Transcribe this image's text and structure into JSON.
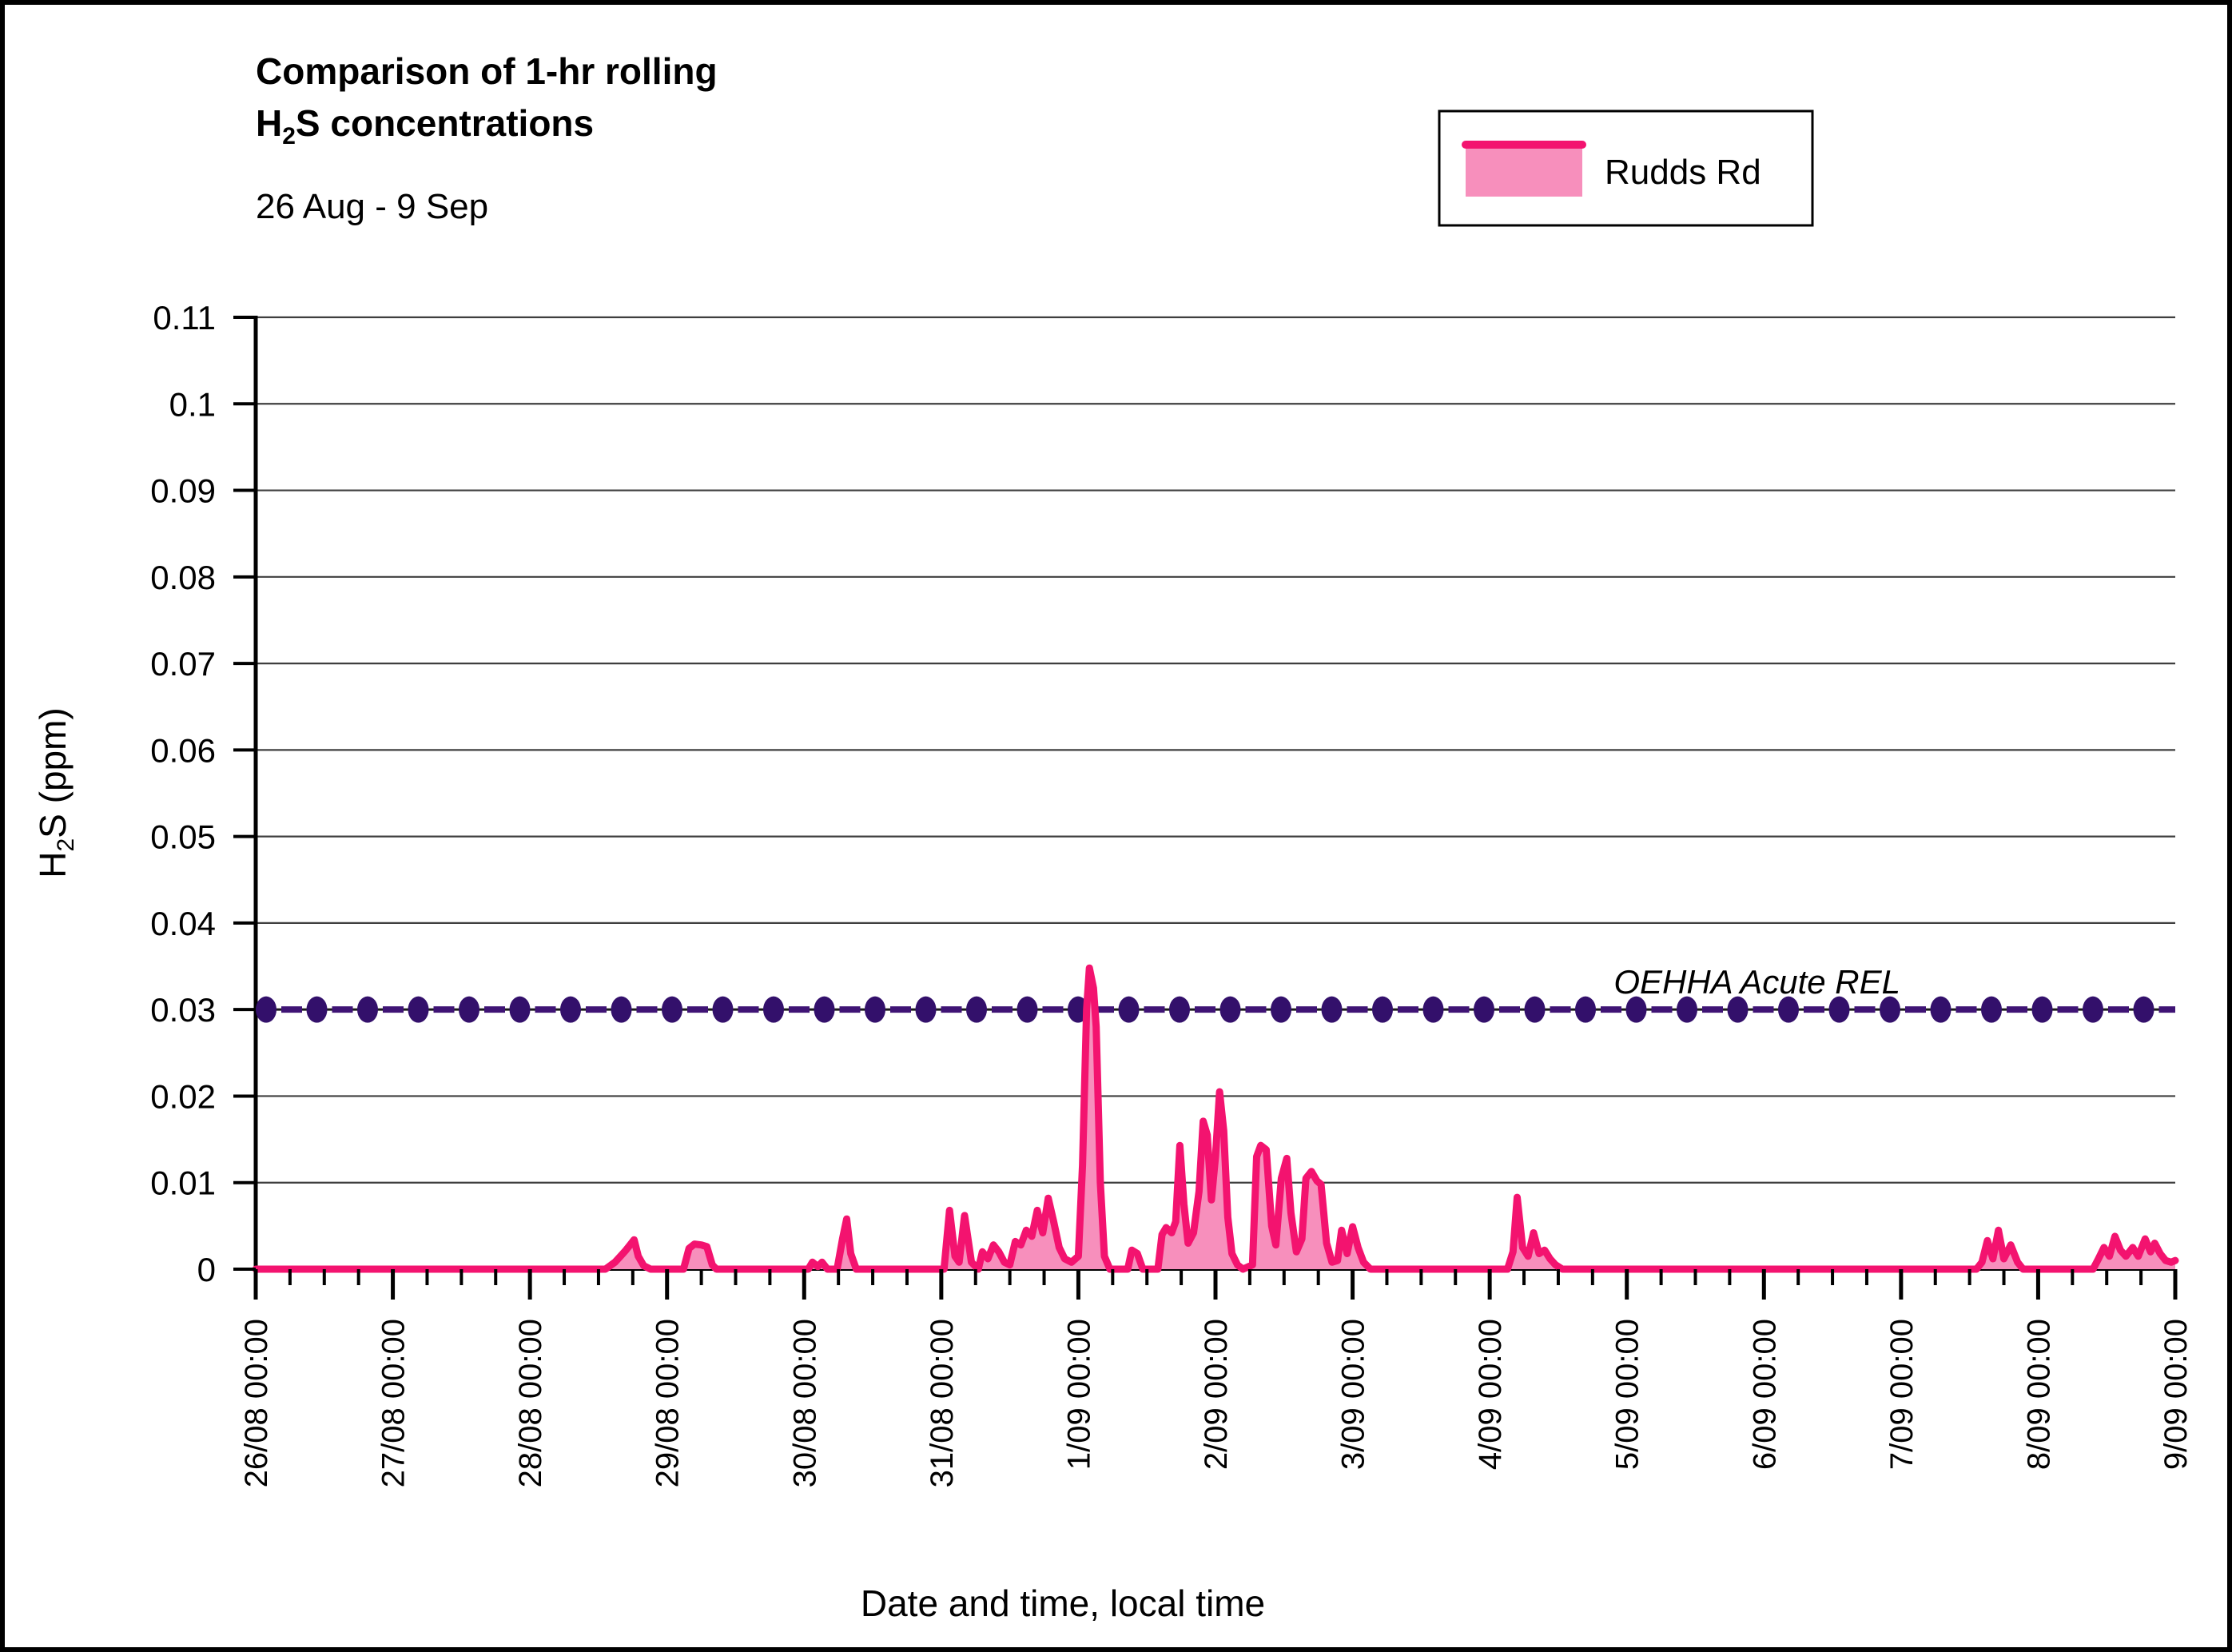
{
  "header": {
    "title_line1": "Comparison of 1-hr rolling",
    "title_line2": {
      "prefix": "H",
      "sub": "2",
      "suffix": "S concentrations"
    },
    "subtitle": "26 Aug - 9 Sep"
  },
  "legend": {
    "label": "Rudds Rd",
    "swatch_fill": "#F78FBC",
    "swatch_line": "#F3136F"
  },
  "colors": {
    "series_line": "#F3136F",
    "series_fill": "#F78FBC",
    "rel_dot": "#33106B",
    "rel_dash": "#3F1475",
    "rel_baseline": "#1a1a1a",
    "grid": "#3f3f3f",
    "axis": "#000000"
  },
  "chart_data": {
    "type": "area",
    "title": "Comparison of 1-hr rolling H2S concentrations",
    "subtitle": "26 Aug - 9 Sep",
    "xlabel": "Date and time, local time",
    "ylabel_prefix": "H",
    "ylabel_sub": "2",
    "ylabel_suffix": "S (ppm)",
    "x_unit": "days since 26/08 00:00, local time",
    "xlim": [
      0,
      14
    ],
    "ylim": [
      0,
      0.11
    ],
    "grid": "horizontal",
    "legend_position": "top-right",
    "y_ticks": [
      "0.11",
      "0.1",
      "0.09",
      "0.08",
      "0.07",
      "0.06",
      "0.05",
      "0.04",
      "0.03",
      "0.02",
      "0.01",
      "0"
    ],
    "y_tick_values": [
      0.11,
      0.1,
      0.09,
      0.08,
      0.07,
      0.06,
      0.05,
      0.04,
      0.03,
      0.02,
      0.01,
      0
    ],
    "x_tick_labels": [
      "26/08 00:00",
      "27/08 00:00",
      "28/08 00:00",
      "29/08 00:00",
      "30/08 00:00",
      "31/08 00:00",
      "1/09 00:00",
      "2/09 00:00",
      "3/09 00:00",
      "4/09 00:00",
      "5/09 00:00",
      "6/09 00:00",
      "7/09 00:00",
      "8/09 00:00",
      "9/09 00:00"
    ],
    "x_minor_ticks_per_day": 4,
    "reference_line": {
      "label": "OEHHA Acute REL",
      "value": 0.03,
      "style": "dash-dot"
    },
    "series": [
      {
        "name": "Rudds Rd",
        "points": [
          [
            0,
            0
          ],
          [
            2.55,
            0
          ],
          [
            2.62,
            0.0008
          ],
          [
            2.66,
            0.0015
          ],
          [
            2.7,
            0.0022
          ],
          [
            2.73,
            0.0028
          ],
          [
            2.76,
            0.0034
          ],
          [
            2.79,
            0.0015
          ],
          [
            2.83,
            0.0004
          ],
          [
            2.88,
            0
          ],
          [
            3.12,
            0
          ],
          [
            3.16,
            0.0024
          ],
          [
            3.2,
            0.0029
          ],
          [
            3.25,
            0.0028
          ],
          [
            3.29,
            0.0026
          ],
          [
            3.33,
            0.0005
          ],
          [
            3.36,
            0
          ],
          [
            4.03,
            0
          ],
          [
            4.06,
            0.0008
          ],
          [
            4.1,
            0.0003
          ],
          [
            4.13,
            0.0008
          ],
          [
            4.17,
            0
          ],
          [
            4.24,
            0
          ],
          [
            4.28,
            0.0035
          ],
          [
            4.31,
            0.0058
          ],
          [
            4.34,
            0.0018
          ],
          [
            4.38,
            0
          ],
          [
            5.02,
            0
          ],
          [
            5.06,
            0.0068
          ],
          [
            5.1,
            0.0015
          ],
          [
            5.13,
            0.0008
          ],
          [
            5.17,
            0.0062
          ],
          [
            5.22,
            0.0008
          ],
          [
            5.27,
            0
          ],
          [
            5.3,
            0.002
          ],
          [
            5.34,
            0.0012
          ],
          [
            5.38,
            0.0028
          ],
          [
            5.42,
            0.002
          ],
          [
            5.46,
            0.0008
          ],
          [
            5.5,
            0.0005
          ],
          [
            5.54,
            0.0032
          ],
          [
            5.58,
            0.0028
          ],
          [
            5.62,
            0.0045
          ],
          [
            5.66,
            0.0038
          ],
          [
            5.7,
            0.0068
          ],
          [
            5.74,
            0.0042
          ],
          [
            5.78,
            0.0082
          ],
          [
            5.82,
            0.0055
          ],
          [
            5.86,
            0.0025
          ],
          [
            5.9,
            0.0012
          ],
          [
            5.95,
            0.0008
          ],
          [
            6.0,
            0.0015
          ],
          [
            6.03,
            0.012
          ],
          [
            6.06,
            0.03
          ],
          [
            6.08,
            0.0348
          ],
          [
            6.11,
            0.0325
          ],
          [
            6.13,
            0.028
          ],
          [
            6.16,
            0.01
          ],
          [
            6.19,
            0.0015
          ],
          [
            6.23,
            0
          ],
          [
            6.36,
            0
          ],
          [
            6.39,
            0.0022
          ],
          [
            6.43,
            0.0018
          ],
          [
            6.47,
            0
          ],
          [
            6.58,
            0
          ],
          [
            6.61,
            0.004
          ],
          [
            6.64,
            0.0048
          ],
          [
            6.68,
            0.0042
          ],
          [
            6.71,
            0.0055
          ],
          [
            6.74,
            0.0143
          ],
          [
            6.77,
            0.0075
          ],
          [
            6.8,
            0.003
          ],
          [
            6.84,
            0.0042
          ],
          [
            6.88,
            0.009
          ],
          [
            6.91,
            0.0171
          ],
          [
            6.94,
            0.0155
          ],
          [
            6.97,
            0.008
          ],
          [
            7.0,
            0.013
          ],
          [
            7.03,
            0.0205
          ],
          [
            7.06,
            0.016
          ],
          [
            7.09,
            0.006
          ],
          [
            7.12,
            0.0018
          ],
          [
            7.16,
            0.0005
          ],
          [
            7.2,
            0
          ],
          [
            7.27,
            0.0005
          ],
          [
            7.3,
            0.013
          ],
          [
            7.33,
            0.0143
          ],
          [
            7.37,
            0.0138
          ],
          [
            7.41,
            0.005
          ],
          [
            7.44,
            0.0028
          ],
          [
            7.48,
            0.0105
          ],
          [
            7.52,
            0.0128
          ],
          [
            7.55,
            0.0065
          ],
          [
            7.59,
            0.002
          ],
          [
            7.63,
            0.0035
          ],
          [
            7.66,
            0.0105
          ],
          [
            7.7,
            0.0113
          ],
          [
            7.74,
            0.0102
          ],
          [
            7.77,
            0.0098
          ],
          [
            7.81,
            0.003
          ],
          [
            7.85,
            0.0008
          ],
          [
            7.89,
            0.001
          ],
          [
            7.92,
            0.0045
          ],
          [
            7.96,
            0.0018
          ],
          [
            8.0,
            0.0049
          ],
          [
            8.04,
            0.0025
          ],
          [
            8.08,
            0.0008
          ],
          [
            8.13,
            0
          ],
          [
            9.13,
            0
          ],
          [
            9.17,
            0.002
          ],
          [
            9.2,
            0.0083
          ],
          [
            9.24,
            0.0025
          ],
          [
            9.28,
            0.0015
          ],
          [
            9.32,
            0.0042
          ],
          [
            9.36,
            0.0018
          ],
          [
            9.4,
            0.0022
          ],
          [
            9.44,
            0.0012
          ],
          [
            9.48,
            0.0005
          ],
          [
            9.53,
            0
          ],
          [
            12.55,
            0
          ],
          [
            12.59,
            0.0008
          ],
          [
            12.63,
            0.0033
          ],
          [
            12.67,
            0.0012
          ],
          [
            12.71,
            0.0045
          ],
          [
            12.75,
            0.0012
          ],
          [
            12.8,
            0.0028
          ],
          [
            12.85,
            0.0008
          ],
          [
            12.89,
            0
          ],
          [
            13.4,
            0
          ],
          [
            13.44,
            0.0012
          ],
          [
            13.48,
            0.0025
          ],
          [
            13.52,
            0.0015
          ],
          [
            13.56,
            0.0038
          ],
          [
            13.6,
            0.0022
          ],
          [
            13.64,
            0.0015
          ],
          [
            13.69,
            0.0025
          ],
          [
            13.73,
            0.0015
          ],
          [
            13.78,
            0.0035
          ],
          [
            13.82,
            0.002
          ],
          [
            13.85,
            0.003
          ],
          [
            13.89,
            0.0018
          ],
          [
            13.93,
            0.001
          ],
          [
            13.97,
            0.0008
          ],
          [
            14,
            0.001
          ]
        ]
      }
    ]
  }
}
